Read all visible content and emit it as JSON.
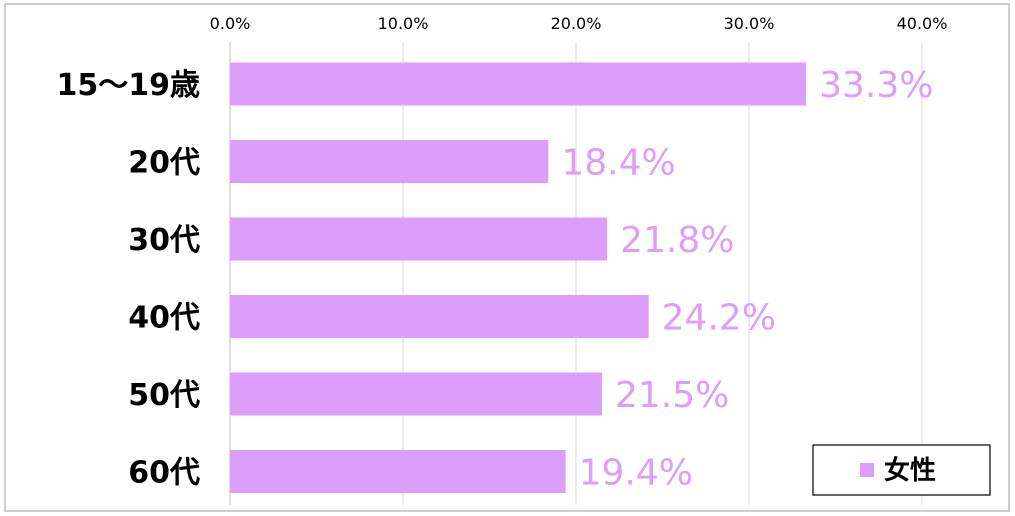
{
  "chart_data": {
    "type": "bar",
    "orientation": "horizontal",
    "categories": [
      "15～19歳",
      "20代",
      "30代",
      "40代",
      "50代",
      "60代"
    ],
    "series": [
      {
        "name": "女性",
        "values": [
          33.3,
          18.4,
          21.8,
          24.2,
          21.5,
          19.4
        ]
      }
    ],
    "value_labels": [
      "33.3%",
      "18.4%",
      "21.8%",
      "24.2%",
      "21.5%",
      "19.4%"
    ],
    "x_ticks": [
      "0.0%",
      "10.0%",
      "20.0%",
      "30.0%",
      "40.0%"
    ],
    "xlim": [
      0,
      45
    ],
    "x_axis_position": "top",
    "grid": true,
    "legend_position": "bottom-right",
    "title": "",
    "xlabel": "",
    "ylabel": ""
  },
  "colors": {
    "bar": "#DD9DFB",
    "value_label": "#DD9DFB",
    "grid": "#D9D9D9",
    "text": "#000000",
    "border": "#BFBFBF"
  }
}
